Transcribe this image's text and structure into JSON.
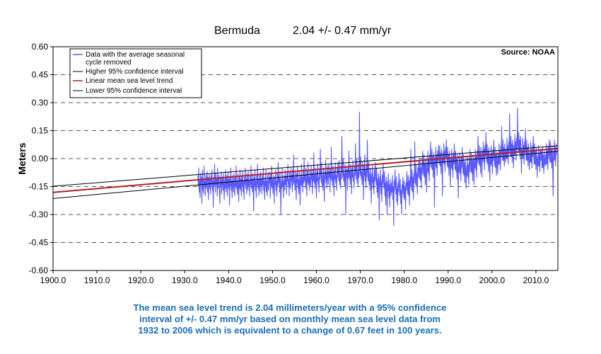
{
  "chart_data": {
    "type": "line",
    "title": "Bermuda",
    "subtitle": "2.04 +/- 0.47 mm/yr",
    "xlabel": "",
    "ylabel": "Meters",
    "xlim": [
      1900,
      2015
    ],
    "ylim": [
      -0.6,
      0.6
    ],
    "x_ticks": [
      "1900.0",
      "1910.0",
      "1920.0",
      "1930.0",
      "1940.0",
      "1950.0",
      "1960.0",
      "1970.0",
      "1980.0",
      "1990.0",
      "2000.0",
      "2010.0"
    ],
    "y_ticks": [
      "0.60",
      "0.45",
      "0.30",
      "0.15",
      "0.00",
      "-0.15",
      "-0.30",
      "-0.45",
      "-0.60"
    ],
    "grid": "horizontal dashed",
    "source": "Source: NOAA",
    "legend_position": "top-left",
    "legend": [
      {
        "label_line1": "Data with the average seasonal",
        "label_line2": "cycle removed",
        "color": "#5a5aff"
      },
      {
        "label_line1": "Higher 95% confidence interval",
        "color": "#000000"
      },
      {
        "label_line1": "Linear mean sea level trend",
        "color": "#b22222"
      },
      {
        "label_line1": "Lower 95% confidence interval",
        "color": "#000000"
      }
    ],
    "series": [
      {
        "name": "Data with the average seasonal cycle removed",
        "color": "#5a5aff",
        "x_start": 1933.0,
        "x_step": 0.1,
        "values": [
          -0.09,
          -0.15,
          -0.05,
          -0.18,
          -0.12,
          -0.21,
          -0.08,
          -0.14,
          -0.1,
          -0.24,
          -0.06,
          -0.17,
          -0.11,
          -0.19,
          -0.04,
          -0.15,
          -0.12,
          -0.2,
          -0.09,
          -0.16,
          -0.13,
          -0.07,
          -0.18,
          -0.1,
          -0.22,
          -0.12,
          -0.08,
          -0.16,
          -0.11,
          -0.19,
          -0.09,
          -0.14,
          -0.06,
          -0.17,
          -0.12,
          -0.26,
          -0.1,
          -0.15,
          -0.03,
          -0.13,
          -0.18,
          -0.08,
          -0.14,
          -0.11,
          -0.2,
          -0.05,
          -0.16,
          -0.12,
          -0.09,
          -0.18,
          -0.24,
          -0.1,
          -0.15,
          -0.07,
          -0.19,
          -0.13,
          -0.1,
          -0.17,
          -0.08,
          -0.14,
          -0.22,
          -0.11,
          -0.16,
          -0.06,
          -0.18,
          -0.12,
          -0.09,
          -0.2,
          -0.13,
          -0.07,
          -0.16,
          -0.11,
          -0.25,
          -0.1,
          -0.15,
          -0.05,
          -0.17,
          -0.12,
          -0.21,
          -0.09,
          -0.14,
          -0.18,
          -0.08,
          -0.13,
          -0.2,
          -0.1,
          -0.15,
          -0.04,
          -0.16,
          -0.12,
          -0.19,
          -0.08,
          -0.14,
          -0.23,
          -0.1,
          -0.16,
          -0.06,
          -0.17,
          -0.11,
          -0.2,
          -0.09,
          -0.15,
          -0.07,
          -0.18,
          -0.12,
          -0.22,
          -0.1,
          -0.14,
          -0.05,
          -0.16,
          -0.11,
          -0.19,
          -0.08,
          -0.13,
          -0.17,
          -0.07,
          -0.15,
          -0.12,
          -0.2,
          -0.09,
          -0.14,
          -0.04,
          -0.16,
          -0.11,
          -0.18,
          -0.08,
          -0.13,
          -0.28,
          -0.1,
          -0.15,
          -0.06,
          -0.17,
          -0.12,
          -0.21,
          -0.09,
          -0.14,
          -0.03,
          -0.16,
          -0.11,
          -0.2,
          -0.08,
          -0.13,
          -0.18,
          -0.07,
          -0.15,
          -0.11,
          -0.19,
          -0.09,
          -0.14,
          -0.05,
          -0.17,
          -0.12,
          -0.22,
          -0.1,
          -0.15,
          -0.06,
          -0.18,
          -0.12,
          -0.2,
          -0.09,
          -0.14,
          -0.17,
          -0.07,
          -0.13,
          -0.1,
          -0.21,
          -0.08,
          -0.15,
          -0.04,
          -0.16,
          -0.11,
          -0.19,
          -0.09,
          -0.13,
          -0.24,
          -0.1,
          -0.14,
          -0.06,
          -0.17,
          -0.12,
          -0.2,
          -0.08,
          -0.15,
          -0.02,
          -0.13,
          -0.1,
          -0.18,
          -0.07,
          -0.14,
          -0.3,
          -0.11,
          -0.16,
          -0.05,
          -0.15,
          -0.12,
          -0.21,
          -0.09,
          -0.13,
          -0.17,
          -0.06,
          -0.14,
          -0.1,
          -0.19,
          -0.08,
          -0.12,
          -0.03,
          -0.15,
          -0.11,
          -0.2,
          -0.07,
          -0.13,
          -0.16,
          -0.05,
          -0.12,
          -0.09,
          -0.18,
          -0.06,
          -0.14,
          0.02,
          -0.13,
          -0.1,
          -0.17,
          -0.07,
          -0.12,
          -0.22,
          -0.08,
          -0.13,
          -0.04,
          -0.16,
          -0.11,
          -0.19,
          -0.07,
          -0.12,
          -0.25,
          -0.09,
          -0.14,
          -0.03,
          -0.15,
          -0.1,
          -0.18,
          -0.06,
          -0.13,
          0.0,
          -0.12,
          -0.09,
          -0.16,
          -0.05,
          -0.11,
          -0.2,
          -0.07,
          -0.13,
          -0.02,
          -0.14,
          -0.1,
          -0.17,
          -0.06,
          -0.12,
          -0.15,
          -0.04,
          -0.11,
          -0.08,
          -0.19,
          -0.06,
          -0.12,
          0.03,
          -0.13,
          -0.09,
          -0.16,
          -0.05,
          -0.11,
          -0.21,
          -0.07,
          -0.12,
          -0.03,
          -0.14,
          -0.1,
          -0.18,
          -0.06,
          -0.11,
          0.05,
          -0.08,
          -0.13,
          -0.02,
          -0.15,
          -0.09,
          -0.17,
          -0.05,
          -0.12,
          -0.23,
          -0.07,
          -0.11,
          -0.01,
          -0.13,
          -0.08,
          -0.16,
          -0.04,
          -0.1,
          -0.14,
          -0.03,
          -0.1,
          -0.07,
          -0.18,
          -0.05,
          -0.11,
          0.06,
          -0.12,
          -0.08,
          -0.15,
          -0.04,
          -0.1,
          -0.2,
          -0.06,
          -0.11,
          -0.02,
          -0.13,
          -0.09,
          -0.17,
          -0.05,
          -0.1,
          -0.02,
          -0.07,
          -0.12,
          -0.01,
          -0.14,
          -0.08,
          -0.16,
          -0.04,
          -0.11,
          0.12,
          -0.06,
          -0.1,
          0.0,
          -0.12,
          -0.08,
          -0.15,
          -0.03,
          -0.09,
          -0.3,
          -0.05,
          -0.1,
          -0.06,
          -0.17,
          -0.04,
          -0.1,
          0.04,
          -0.11,
          -0.07,
          -0.14,
          -0.03,
          -0.09,
          -0.19,
          -0.05,
          -0.1,
          -0.01,
          -0.12,
          -0.08,
          -0.16,
          -0.04,
          -0.09,
          0.08,
          -0.06,
          -0.11,
          0.0,
          -0.13,
          -0.07,
          -0.15,
          -0.03,
          -0.1,
          0.25,
          -0.05,
          -0.09,
          0.01,
          -0.11,
          -0.07,
          -0.14,
          -0.02,
          -0.08,
          -0.22,
          -0.04,
          -0.09,
          0.02,
          -0.12,
          -0.06,
          -0.16,
          -0.03,
          -0.1,
          0.1,
          -0.07,
          -0.12,
          -0.02,
          -0.14,
          -0.08,
          -0.17,
          -0.05,
          -0.11,
          -0.24,
          -0.08,
          -0.13,
          -0.04,
          -0.16,
          -0.1,
          -0.19,
          -0.06,
          -0.12,
          -0.02,
          -0.09,
          -0.14,
          -0.05,
          -0.18,
          -0.11,
          -0.21,
          -0.08,
          -0.13,
          -0.33,
          -0.1,
          -0.15,
          -0.06,
          -0.19,
          -0.12,
          -0.23,
          -0.09,
          -0.14,
          -0.03,
          -0.11,
          -0.16,
          -0.07,
          -0.2,
          -0.13,
          -0.25,
          -0.1,
          -0.15,
          -0.3,
          -0.12,
          -0.17,
          -0.08,
          -0.21,
          -0.14,
          -0.26,
          -0.11,
          -0.16,
          -0.2,
          -0.13,
          -0.18,
          -0.09,
          -0.22,
          -0.15,
          -0.36,
          -0.12,
          -0.17,
          -0.06,
          -0.14,
          -0.19,
          -0.1,
          -0.23,
          -0.16,
          -0.25,
          -0.13,
          -0.18,
          -0.08,
          -0.15,
          -0.2,
          -0.11,
          -0.24,
          -0.17,
          -0.3,
          -0.14,
          -0.19,
          -0.1,
          -0.16,
          -0.21,
          -0.12,
          -0.22,
          -0.15,
          -0.27,
          -0.13,
          -0.17,
          -0.07,
          -0.14,
          -0.19,
          -0.09,
          -0.2,
          -0.12,
          -0.25,
          -0.1,
          -0.15,
          0.05,
          -0.12,
          -0.17,
          -0.06,
          -0.18,
          -0.1,
          -0.22,
          -0.08,
          -0.13,
          0.09,
          -0.09,
          -0.14,
          -0.03,
          -0.15,
          -0.08,
          -0.19,
          -0.05,
          -0.1,
          -0.01,
          -0.06,
          -0.11,
          0.0,
          -0.12,
          -0.05,
          -0.16,
          -0.02,
          -0.08,
          0.04,
          -0.04,
          -0.09,
          0.02,
          -0.1,
          -0.03,
          -0.14,
          0.0,
          -0.06,
          -0.18,
          -0.02,
          -0.07,
          0.04,
          -0.08,
          -0.01,
          -0.12,
          0.02,
          -0.04,
          0.09,
          0.0,
          -0.05,
          0.05,
          -0.06,
          0.01,
          -0.1,
          0.03,
          -0.03,
          -0.26,
          0.01,
          -0.04,
          0.06,
          -0.05,
          0.02,
          -0.09,
          0.04,
          -0.02,
          0.07,
          0.02,
          -0.03,
          0.07,
          -0.04,
          0.03,
          -0.08,
          0.05,
          -0.01,
          -0.2,
          0.03,
          -0.02,
          0.08,
          -0.03,
          0.04,
          -0.07,
          0.06,
          0.0,
          0.1,
          0.01,
          -0.04,
          0.06,
          -0.05,
          0.02,
          -0.09,
          0.04,
          -0.02,
          -0.15,
          0.0,
          -0.05,
          0.05,
          -0.06,
          0.01,
          -0.1,
          0.03,
          -0.03,
          0.08,
          -0.01,
          -0.06,
          0.04,
          -0.07,
          0.0,
          -0.11,
          0.02,
          -0.04,
          -0.21,
          -0.02,
          -0.07,
          0.03,
          -0.08,
          -0.01,
          -0.12,
          0.01,
          -0.05,
          0.06,
          -0.03,
          -0.08,
          0.02,
          -0.09,
          -0.02,
          -0.13,
          0.0,
          -0.06,
          -0.16,
          -0.04,
          -0.09,
          0.01,
          -0.1,
          -0.03,
          -0.14,
          -0.01,
          -0.07,
          0.05,
          -0.02,
          -0.07,
          0.03,
          -0.08,
          -0.01,
          -0.12,
          0.02,
          -0.04,
          -0.14,
          0.0,
          -0.05,
          0.05,
          -0.06,
          0.01,
          -0.1,
          0.04,
          -0.02,
          0.12,
          0.02,
          -0.03,
          0.07,
          -0.04,
          0.03,
          -0.08,
          0.06,
          0.0,
          -0.1,
          0.04,
          -0.01,
          0.09,
          -0.02,
          0.05,
          -0.06,
          0.07,
          0.01,
          0.14,
          0.03,
          -0.02,
          0.08,
          -0.03,
          0.04,
          -0.07,
          0.06,
          0.0,
          -0.12,
          0.02,
          -0.03,
          0.07,
          -0.04,
          0.03,
          -0.08,
          0.05,
          -0.01,
          0.1,
          0.01,
          -0.04,
          0.06,
          -0.05,
          0.02,
          -0.09,
          0.04,
          -0.02,
          -0.08,
          0.02,
          -0.03,
          0.08,
          -0.03,
          0.04,
          -0.06,
          0.07,
          0.01,
          0.17,
          0.04,
          -0.01,
          0.1,
          -0.01,
          0.06,
          -0.04,
          0.08,
          0.02,
          -0.02,
          0.05,
          0.0,
          0.11,
          0.0,
          0.07,
          -0.03,
          0.09,
          0.03,
          0.24,
          0.06,
          0.01,
          0.12,
          0.01,
          0.08,
          -0.02,
          0.1,
          0.04,
          -0.05,
          0.07,
          0.02,
          0.13,
          0.02,
          0.09,
          -0.01,
          0.11,
          0.05,
          0.27,
          0.08,
          0.03,
          0.14,
          0.03,
          0.1,
          0.0,
          0.12,
          0.06,
          -0.08,
          0.05,
          0.0,
          0.11,
          0.0,
          0.07,
          -0.03,
          0.09,
          0.03,
          0.16,
          0.04,
          -0.01,
          0.1,
          -0.01,
          0.06,
          -0.04,
          0.08,
          0.02,
          -0.06,
          0.03,
          -0.02,
          0.09,
          -0.02,
          0.05,
          -0.05,
          0.07,
          0.01,
          0.12,
          0.02,
          -0.03,
          0.08,
          -0.03,
          0.04,
          -0.06,
          0.06,
          0.0,
          -0.1,
          0.01,
          -0.04,
          0.07,
          -0.04,
          0.03,
          -0.07,
          0.05,
          -0.01,
          0.05,
          0.0,
          -0.05,
          0.06,
          -0.05,
          0.02,
          -0.08,
          0.04,
          -0.02,
          -0.04,
          0.02,
          -0.03,
          0.08,
          -0.03,
          0.04,
          -0.06,
          0.06,
          0.0,
          0.1,
          0.03,
          -0.02,
          0.09,
          -0.02,
          0.05,
          -0.05,
          0.07,
          0.01,
          -0.2,
          0.04,
          -0.01,
          0.1,
          -0.01,
          0.06,
          -0.04,
          0.08,
          0.02
        ]
      },
      {
        "name": "Higher 95% confidence interval",
        "color": "#000000",
        "x": [
          1900,
          2015
        ],
        "values": [
          -0.148,
          0.069
        ]
      },
      {
        "name": "Linear mean sea level trend",
        "color": "#b22222",
        "x": [
          1900,
          2015
        ],
        "values": [
          -0.181,
          0.054
        ]
      },
      {
        "name": "Lower 95% confidence interval",
        "color": "#000000",
        "x": [
          1900,
          2015
        ],
        "values": [
          -0.214,
          0.039
        ]
      }
    ]
  },
  "caption": {
    "line1": "The mean sea level trend is 2.04 millimeters/year with a 95% confidence",
    "line2": "interval of +/- 0.47 mm/yr based on monthly mean sea level data from",
    "line3": "1932 to 2006 which is equivalent to a change of 0.67 feet in 100 years."
  }
}
